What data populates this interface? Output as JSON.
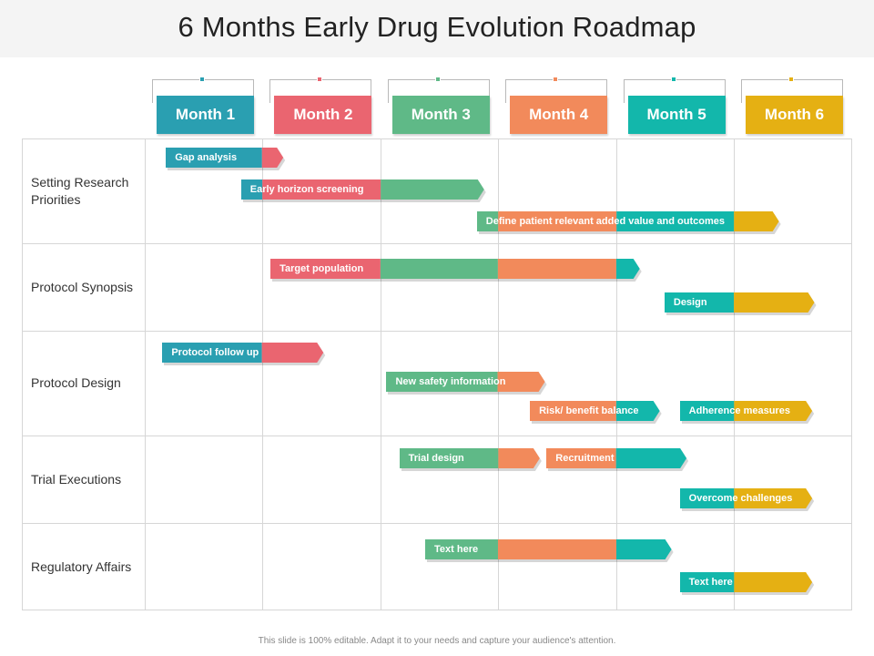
{
  "title": "6 Months Early Drug Evolution Roadmap",
  "footnote": "This slide is 100% editable. Adapt it to your needs and capture your audience's attention.",
  "colors": {
    "teal_dark": "#2a9fb1",
    "red": "#ea6570",
    "green": "#5fb987",
    "orange": "#f28a5b",
    "teal": "#13b7ab",
    "yellow": "#e5b013"
  },
  "months": [
    {
      "label": "Month 1",
      "color": "#2a9fb1"
    },
    {
      "label": "Month 2",
      "color": "#ea6570"
    },
    {
      "label": "Month 3",
      "color": "#5fb987"
    },
    {
      "label": "Month 4",
      "color": "#f28a5b"
    },
    {
      "label": "Month 5",
      "color": "#13b7ab"
    },
    {
      "label": "Month 6",
      "color": "#e5b013"
    }
  ],
  "rows": [
    {
      "label": "Setting Research Priorities",
      "tasks": [
        {
          "label": "Gap analysis",
          "start": 0.18,
          "end": 1.18
        },
        {
          "label": "Early horizon screening",
          "start": 0.82,
          "end": 2.88
        },
        {
          "label": "Define patient relevant added value and outcomes",
          "start": 2.82,
          "end": 5.38
        }
      ]
    },
    {
      "label": "Protocol Synopsis",
      "tasks": [
        {
          "label": "Target population",
          "start": 1.07,
          "end": 4.2
        },
        {
          "label": "Design",
          "start": 4.41,
          "end": 5.68
        }
      ]
    },
    {
      "label": "Protocol Design",
      "tasks": [
        {
          "label": "Protocol follow up",
          "start": 0.15,
          "end": 1.52
        },
        {
          "label": "New safety information",
          "start": 2.05,
          "end": 3.4
        },
        {
          "label": "Risk/ benefit balance",
          "start": 3.27,
          "end": 4.37
        },
        {
          "label": "Adherence measures",
          "start": 4.54,
          "end": 5.66
        }
      ]
    },
    {
      "label": "Trial Executions",
      "tasks": [
        {
          "label": "Trial design",
          "start": 2.16,
          "end": 3.35
        },
        {
          "label": "Recruitment",
          "start": 3.41,
          "end": 4.6
        },
        {
          "label": "Overcome challenges",
          "start": 4.54,
          "end": 5.66
        }
      ]
    },
    {
      "label": "Regulatory Affairs",
      "tasks": [
        {
          "label": "Text here",
          "start": 2.38,
          "end": 4.47
        },
        {
          "label": "Text here",
          "start": 4.54,
          "end": 5.66
        }
      ]
    }
  ]
}
